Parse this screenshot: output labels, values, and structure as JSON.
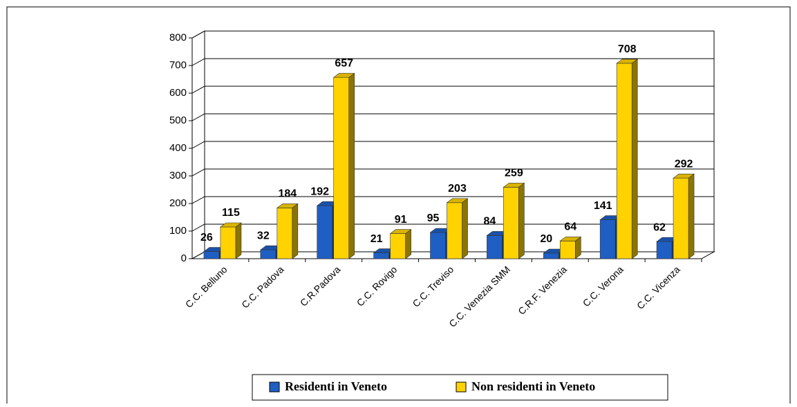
{
  "chart_data": {
    "type": "bar3d",
    "categories": [
      "C.C. Belluno",
      "C.C. Padova",
      "C.R.Padova",
      "C.C. Rovigo",
      "C.C. Treviso",
      "C.C. Venezia SMM",
      "C.R.F. Venezia",
      "C.C. Verona",
      "C.C. Vicenza"
    ],
    "series": [
      {
        "name": "Residenti in Veneto",
        "color": "#1f5fc4",
        "values": [
          26,
          32,
          192,
          21,
          95,
          84,
          20,
          141,
          62
        ]
      },
      {
        "name": "Non residenti in Veneto",
        "color": "#ffd200",
        "values": [
          115,
          184,
          657,
          91,
          203,
          259,
          64,
          708,
          292
        ]
      }
    ],
    "ylim": [
      0,
      800
    ],
    "yticks": [
      0,
      100,
      200,
      300,
      400,
      500,
      600,
      700,
      800
    ],
    "grid": true,
    "legend": "bottom"
  }
}
